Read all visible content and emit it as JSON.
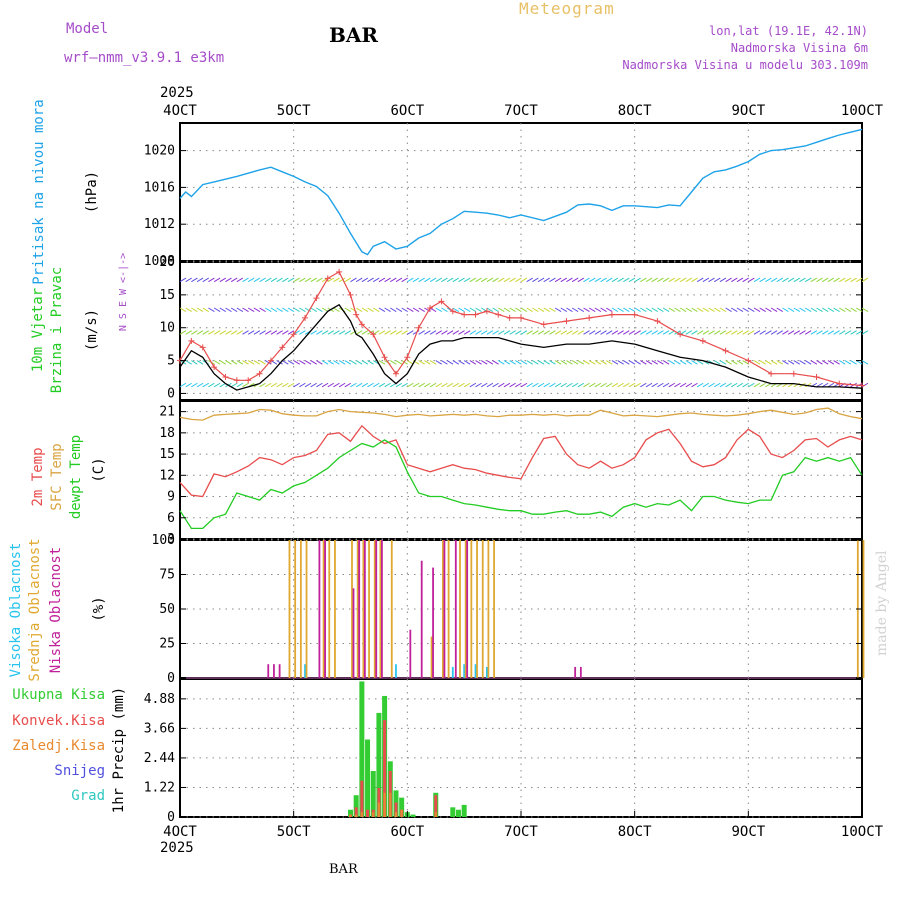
{
  "header": {
    "model_label": "Model",
    "model_name": "wrf–nmm_v3.9.1 e3km",
    "station": "BAR",
    "product": "Meteogram",
    "lonlat": "lon,lat (19.1E, 42.1N)",
    "elevation": "Nadmorska Visina 6m",
    "model_elevation": "Nadmorska Visina u modelu 303.109m"
  },
  "time_axis": {
    "year": "2025",
    "labels": [
      "4OCT",
      "5OCT",
      "6OCT",
      "7OCT",
      "8OCT",
      "9OCT",
      "10OCT"
    ]
  },
  "footer": {
    "station": "BAR"
  },
  "watermark": "made by Angel",
  "colors": {
    "pressure": "#1ea2e8",
    "wind_speed": "#000000",
    "wind_gust": "#e84d4d",
    "temp2m": "#e84d4d",
    "sfc_temp": "#d9a441",
    "dewpoint": "#22cc22",
    "cloud_high": "#28c4ee",
    "cloud_mid": "#e0a830",
    "cloud_low": "#c0209a",
    "precip_total": "#33cc33",
    "precip_conv": "#e84d4d",
    "precip_frz": "#e88a30",
    "snow": "#5050dd",
    "hail": "#2ec9c0"
  },
  "chart_data": [
    {
      "type": "line",
      "panel": "pressure",
      "ylabel": "Pritisak na nivou mora",
      "unit": "(hPa)",
      "ylim": [
        1008,
        1023
      ],
      "yticks": [
        1008,
        1012,
        1016,
        1020
      ],
      "grid": true,
      "x_days": [
        0,
        0.05,
        0.1,
        0.2,
        0.3,
        0.5,
        0.7,
        0.8,
        0.9,
        1.0,
        1.1,
        1.2,
        1.3,
        1.4,
        1.5,
        1.55,
        1.6,
        1.65,
        1.7,
        1.8,
        1.9,
        2.0,
        2.1,
        2.2,
        2.3,
        2.4,
        2.5,
        2.6,
        2.7,
        2.8,
        2.9,
        3.0,
        3.2,
        3.4,
        3.5,
        3.6,
        3.7,
        3.8,
        3.9,
        4.0,
        4.1,
        4.2,
        4.3,
        4.4,
        4.5,
        4.6,
        4.7,
        4.8,
        4.9,
        5.0,
        5.1,
        5.2,
        5.3,
        5.4,
        5.5,
        5.6,
        5.7,
        5.8,
        5.9,
        6.0
      ],
      "series": [
        {
          "name": "",
          "values": [
            1014.8,
            1015.5,
            1015.0,
            1016.3,
            1016.6,
            1017.2,
            1017.9,
            1018.2,
            1017.7,
            1017.2,
            1016.6,
            1016.1,
            1015.1,
            1013.2,
            1011.0,
            1010.0,
            1009.0,
            1008.7,
            1009.6,
            1010.1,
            1009.3,
            1009.6,
            1010.5,
            1011.0,
            1012.0,
            1012.6,
            1013.4,
            1013.3,
            1013.2,
            1013.0,
            1012.7,
            1013.0,
            1012.4,
            1013.3,
            1014.1,
            1014.2,
            1014.0,
            1013.5,
            1014.0,
            1014.0,
            1013.9,
            1013.8,
            1014.1,
            1014.0,
            1015.5,
            1017.0,
            1017.7,
            1017.9,
            1018.3,
            1018.8,
            1019.6,
            1020.0,
            1020.1,
            1020.3,
            1020.5,
            1020.9,
            1021.3,
            1021.7,
            1022.0,
            1022.3
          ]
        }
      ]
    },
    {
      "type": "line",
      "panel": "wind",
      "ylabel": "10m Vjetar Brzina i Pravac",
      "unit": "(m/s)",
      "direction_legend": "N S E W <-|->",
      "ylim": [
        -1,
        20
      ],
      "yticks": [
        0,
        5,
        10,
        15,
        20
      ],
      "grid": true,
      "x_days": [
        0,
        0.1,
        0.2,
        0.3,
        0.4,
        0.5,
        0.6,
        0.7,
        0.8,
        0.9,
        1.0,
        1.1,
        1.2,
        1.3,
        1.4,
        1.5,
        1.55,
        1.6,
        1.7,
        1.8,
        1.9,
        2.0,
        2.1,
        2.2,
        2.3,
        2.4,
        2.5,
        2.6,
        2.7,
        2.8,
        2.9,
        3.0,
        3.2,
        3.4,
        3.6,
        3.8,
        4.0,
        4.2,
        4.4,
        4.6,
        4.8,
        5.0,
        5.2,
        5.4,
        5.6,
        5.8,
        6.0
      ],
      "series": [
        {
          "name": "",
          "values": [
            4.0,
            6.5,
            5.5,
            3.0,
            1.5,
            0.5,
            1.0,
            1.5,
            3.0,
            5.0,
            6.5,
            8.5,
            10.5,
            12.5,
            13.5,
            11.0,
            9.0,
            8.5,
            6.0,
            3.0,
            1.5,
            3.0,
            6.0,
            7.5,
            8.0,
            8.0,
            8.5,
            8.5,
            8.5,
            8.5,
            8.0,
            7.5,
            7.0,
            7.5,
            7.5,
            8.0,
            7.5,
            6.5,
            5.5,
            5.0,
            4.0,
            2.5,
            1.5,
            1.5,
            1.0,
            1.0,
            0.8
          ]
        },
        {
          "name": "",
          "values": [
            5.0,
            8.0,
            7.0,
            4.0,
            2.5,
            2.0,
            2.0,
            3.0,
            5.0,
            7.0,
            9.0,
            11.5,
            14.5,
            17.5,
            18.5,
            15.0,
            12.0,
            10.5,
            9.0,
            5.5,
            3.0,
            5.5,
            10.0,
            13.0,
            14.0,
            12.5,
            12.0,
            12.0,
            12.5,
            12.0,
            11.5,
            11.5,
            10.5,
            11.0,
            11.5,
            12.0,
            12.0,
            11.0,
            9.0,
            8.0,
            6.5,
            5.0,
            3.0,
            3.0,
            2.5,
            1.5,
            1.2
          ]
        }
      ]
    },
    {
      "type": "line",
      "panel": "temperature",
      "ylabel": "2m Temp SFC Temp dewpt Temp",
      "unit": "(C)",
      "ylim": [
        3,
        22.5
      ],
      "yticks": [
        3,
        6,
        9,
        12,
        15,
        18,
        21
      ],
      "grid": true,
      "x_days": [
        0,
        0.1,
        0.2,
        0.3,
        0.4,
        0.5,
        0.6,
        0.7,
        0.8,
        0.9,
        1.0,
        1.1,
        1.2,
        1.3,
        1.4,
        1.5,
        1.6,
        1.7,
        1.8,
        1.9,
        2.0,
        2.1,
        2.2,
        2.3,
        2.4,
        2.5,
        2.6,
        2.7,
        2.8,
        2.9,
        3.0,
        3.1,
        3.2,
        3.3,
        3.4,
        3.5,
        3.6,
        3.7,
        3.8,
        3.9,
        4.0,
        4.1,
        4.2,
        4.3,
        4.4,
        4.5,
        4.6,
        4.7,
        4.8,
        4.9,
        5.0,
        5.1,
        5.2,
        5.3,
        5.4,
        5.5,
        5.6,
        5.7,
        5.8,
        5.9,
        6.0
      ],
      "series": [
        {
          "name": "",
          "values": [
            11.0,
            9.2,
            9.0,
            12.2,
            11.8,
            12.5,
            13.3,
            14.5,
            14.2,
            13.5,
            14.5,
            14.8,
            15.5,
            17.8,
            18.0,
            16.8,
            19.0,
            17.5,
            16.5,
            17.0,
            13.5,
            13.0,
            12.5,
            13.0,
            13.5,
            13.0,
            12.8,
            12.3,
            12.0,
            11.7,
            11.5,
            14.5,
            17.2,
            17.5,
            15.0,
            13.5,
            13.0,
            14.0,
            13.0,
            13.5,
            14.5,
            17.0,
            18.0,
            18.5,
            16.5,
            14.0,
            13.2,
            13.5,
            14.5,
            17.0,
            18.5,
            17.5,
            15.0,
            14.5,
            15.5,
            17.0,
            17.2,
            16.0,
            17.0,
            17.5,
            17.0
          ]
        },
        {
          "name": "",
          "values": [
            20.2,
            19.9,
            19.8,
            20.5,
            20.6,
            20.7,
            20.8,
            21.3,
            21.2,
            20.7,
            20.5,
            20.4,
            20.4,
            21.0,
            21.3,
            21.0,
            20.9,
            20.8,
            20.6,
            20.3,
            20.5,
            20.6,
            20.4,
            20.5,
            20.6,
            20.5,
            20.6,
            20.4,
            20.3,
            20.5,
            20.5,
            20.6,
            20.5,
            20.6,
            20.4,
            20.5,
            20.5,
            21.2,
            20.8,
            20.4,
            20.5,
            20.4,
            20.3,
            20.5,
            20.7,
            20.8,
            20.6,
            20.5,
            20.4,
            20.5,
            20.7,
            21.0,
            21.2,
            20.9,
            20.6,
            20.8,
            21.3,
            21.5,
            20.7,
            20.3,
            20.0
          ]
        },
        {
          "name": "",
          "values": [
            7.0,
            4.5,
            4.5,
            6.0,
            6.5,
            9.5,
            9.0,
            8.5,
            10.0,
            9.5,
            10.5,
            11.0,
            12.0,
            13.0,
            14.5,
            15.5,
            16.5,
            16.0,
            17.0,
            16.0,
            12.5,
            9.5,
            9.0,
            9.0,
            8.5,
            8.0,
            7.8,
            7.5,
            7.2,
            7.0,
            7.0,
            6.5,
            6.5,
            6.8,
            7.0,
            6.5,
            6.5,
            6.8,
            6.2,
            7.5,
            8.0,
            7.5,
            8.0,
            7.8,
            8.5,
            7.0,
            9.0,
            9.0,
            8.5,
            8.2,
            8.0,
            8.5,
            8.5,
            12.0,
            12.5,
            14.5,
            14.0,
            14.5,
            14.0,
            14.5,
            12.0
          ]
        }
      ]
    },
    {
      "type": "bar",
      "panel": "clouds",
      "ylabel": "Visoka Oblacnost Srednja Oblacnost Niska Oblacnost",
      "unit": "(%)",
      "ylim": [
        0,
        100
      ],
      "yticks": [
        0,
        25,
        50,
        75,
        100
      ],
      "grid": true,
      "series": [
        {
          "name": "",
          "x_days": [
            1.1,
            1.9,
            2.4,
            2.5,
            2.6,
            2.7
          ],
          "values": [
            10,
            10,
            8,
            10,
            10,
            8
          ]
        },
        {
          "name": "",
          "x_days": [
            0.95,
            1.0,
            1.05,
            1.1,
            1.25,
            1.3,
            1.35,
            1.5,
            1.55,
            1.6,
            1.65,
            1.7,
            1.75,
            1.85,
            2.2,
            2.3,
            2.35,
            2.45,
            2.5,
            2.55,
            2.6,
            2.65,
            2.7,
            2.75,
            5.95,
            6.0
          ],
          "values": [
            100,
            100,
            100,
            100,
            100,
            100,
            100,
            100,
            100,
            100,
            100,
            100,
            100,
            100,
            30,
            100,
            100,
            100,
            100,
            100,
            100,
            100,
            100,
            100,
            100,
            100
          ]
        },
        {
          "name": "",
          "x_days": [
            0.75,
            0.8,
            0.85,
            1.2,
            1.25,
            1.5,
            1.55,
            1.6,
            1.7,
            1.75,
            2.0,
            2.1,
            2.2,
            2.3,
            2.4,
            2.5,
            3.45,
            3.5
          ],
          "values": [
            10,
            10,
            10,
            100,
            100,
            65,
            100,
            100,
            100,
            100,
            35,
            85,
            80,
            100,
            100,
            100,
            8,
            8
          ]
        }
      ]
    },
    {
      "type": "bar",
      "panel": "precip",
      "ylabel": "1hr Precip",
      "unit": "(mm)",
      "ylim": [
        0,
        5.7
      ],
      "yticks": [
        0,
        1.22,
        2.44,
        3.66,
        4.88
      ],
      "grid": true,
      "x_days": [
        1.5,
        1.55,
        1.6,
        1.65,
        1.7,
        1.75,
        1.8,
        1.85,
        1.9,
        1.95,
        2.0,
        2.05,
        2.25,
        2.4,
        2.45,
        2.5
      ],
      "legend": [
        "Ukupna Kisa",
        "Konvek.Kisa",
        "Zaledj.Kisa",
        "Snijeg",
        "Grad"
      ],
      "series": [
        {
          "name": "Ukupna Kisa",
          "values": [
            0.3,
            0.9,
            5.6,
            3.2,
            1.9,
            4.3,
            5.0,
            2.3,
            1.1,
            0.8,
            0.2,
            0.1,
            1.0,
            0.4,
            0.3,
            0.5
          ]
        },
        {
          "name": "Konvek.Kisa",
          "values": [
            0.1,
            0.4,
            1.5,
            0.3,
            0.3,
            1.2,
            4.0,
            1.9,
            0.6,
            0.3,
            0.0,
            0.0,
            0.9,
            0.0,
            0.0,
            0.0
          ]
        },
        {
          "name": "Zaledj.Kisa",
          "values": [
            0.1,
            0.1,
            0.2,
            0.0,
            0.2,
            0.6,
            1.0,
            1.0,
            0.2,
            0.3,
            0.0,
            0.0,
            0.2,
            0.0,
            0.0,
            0.0
          ]
        },
        {
          "name": "Snijeg",
          "values": []
        },
        {
          "name": "Grad",
          "values": []
        }
      ]
    }
  ]
}
